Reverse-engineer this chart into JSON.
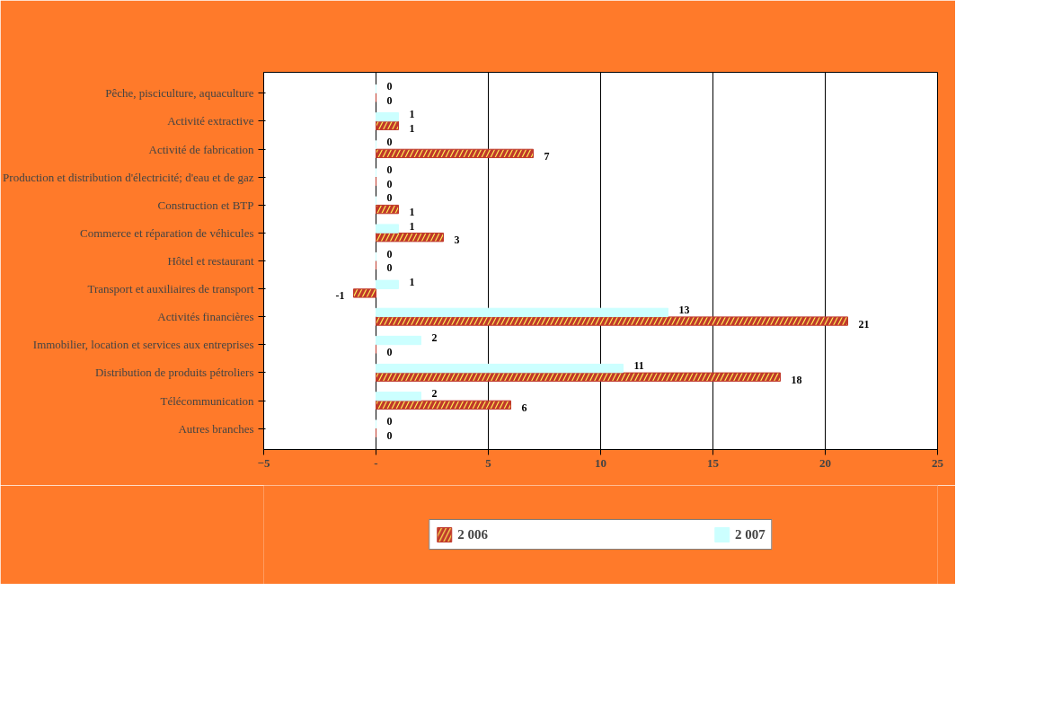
{
  "chart_data": {
    "type": "bar",
    "orientation": "horizontal",
    "categories": [
      "Pêche, pisciculture, aquaculture",
      "Activité extractive",
      "Activité de fabrication",
      "Production et distribution d'électricité; d'eau et de gaz",
      "Construction et BTP",
      "Commerce et réparation de véhicules",
      "Hôtel et restaurant",
      "Transport et auxiliaires de transport",
      "Activités financières",
      "Immobilier, location et services aux entreprises",
      "Distribution de produits pétroliers",
      "Télécommunication",
      "Autres branches"
    ],
    "series": [
      {
        "name": "2 006",
        "color": "#c0392b",
        "values": [
          0,
          1,
          7,
          0,
          1,
          3,
          0,
          -1,
          21,
          0,
          18,
          6,
          0
        ]
      },
      {
        "name": "2 007",
        "color": "#ccffff",
        "values": [
          0,
          1,
          0,
          0,
          0,
          1,
          0,
          1,
          13,
          2,
          11,
          2,
          0
        ]
      }
    ],
    "xlim": [
      -5,
      25
    ],
    "xticks": [
      -5,
      {
        "value": 0,
        "label": "-"
      },
      5,
      10,
      15,
      20,
      25
    ],
    "grid": "x",
    "legend": "bottom",
    "data_labels": true
  }
}
